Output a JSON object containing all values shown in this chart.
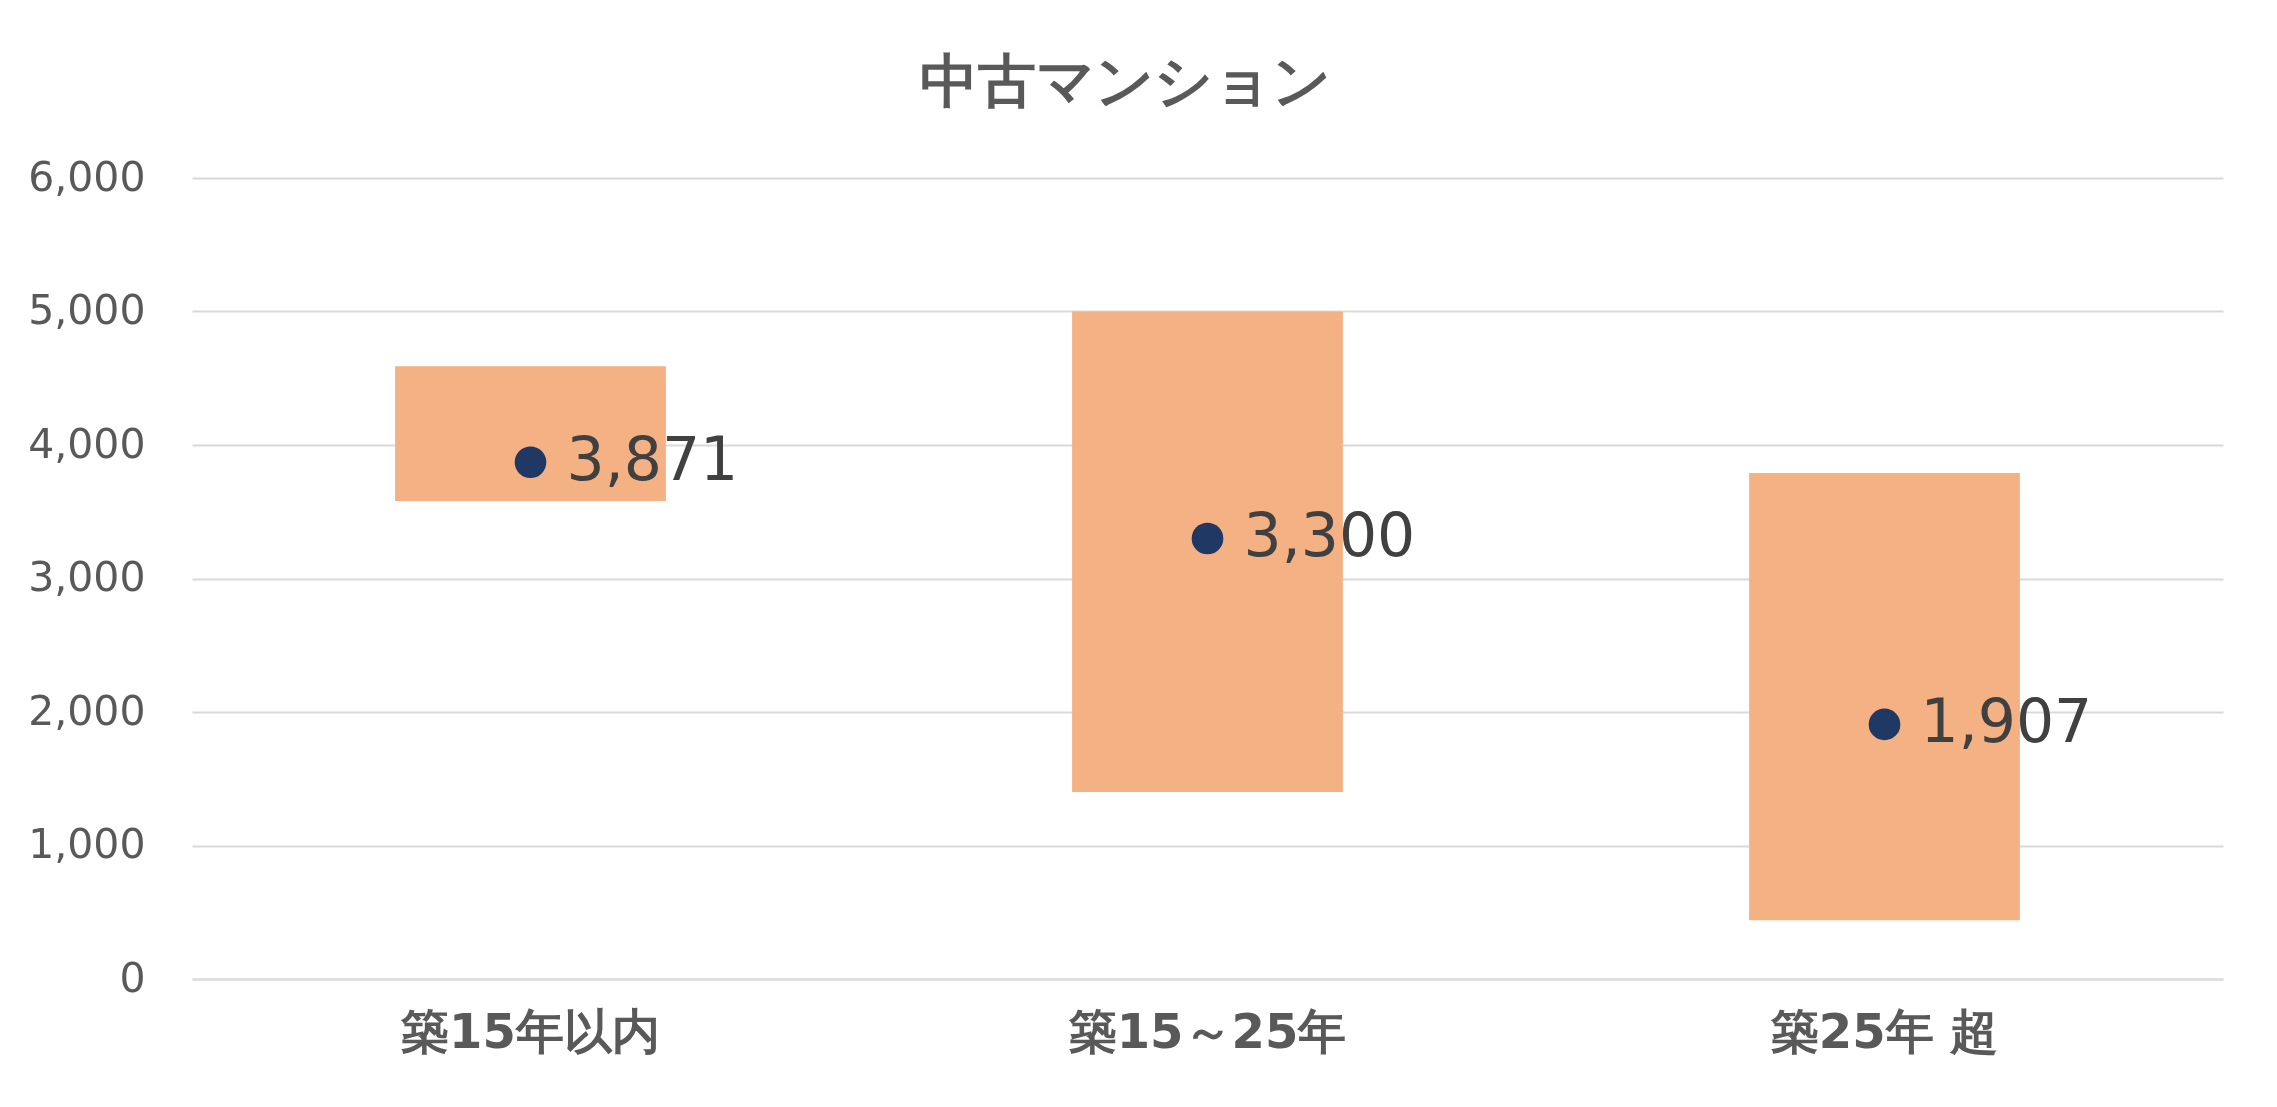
{
  "chart_data": {
    "type": "bar",
    "title": "中古マンション",
    "categories": [
      "築15年以内",
      "築15～25年",
      "築25年 超"
    ],
    "ylim": [
      0,
      6000
    ],
    "yticks": [
      {
        "value": 0,
        "label": "0"
      },
      {
        "value": 1000,
        "label": "1,000"
      },
      {
        "value": 2000,
        "label": "2,000"
      },
      {
        "value": 3000,
        "label": "3,000"
      },
      {
        "value": 4000,
        "label": "4,000"
      },
      {
        "value": 5000,
        "label": "5,000"
      },
      {
        "value": 6000,
        "label": "6,000"
      }
    ],
    "grid": "y",
    "series": [
      {
        "type": "bar",
        "color": "#f4b183",
        "base": [
          3580,
          1400,
          440
        ],
        "values": [
          1010,
          3600,
          3350
        ]
      },
      {
        "type": "scatter",
        "color": "#203864",
        "x": [
          "築15年以内",
          "築15～25年",
          "築25年 超"
        ],
        "values": [
          3871,
          3300,
          1907
        ],
        "marker": "circle",
        "value_labels": [
          "3,871",
          "3,300",
          "1,907"
        ]
      }
    ]
  }
}
